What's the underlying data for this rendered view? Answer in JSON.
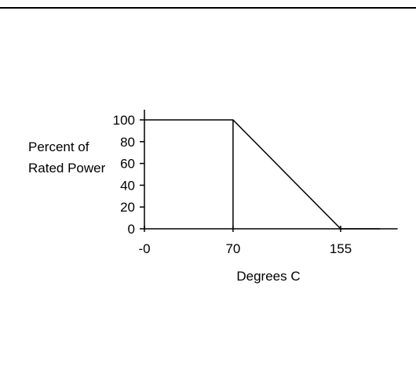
{
  "chart_data": {
    "type": "line",
    "title": "",
    "xlabel": "Degrees C",
    "ylabel_lines": [
      "Percent of",
      "Rated Power"
    ],
    "x_ticks": [
      {
        "value": 0,
        "label": "-0"
      },
      {
        "value": 70,
        "label": "70"
      },
      {
        "value": 155,
        "label": "155"
      }
    ],
    "y_ticks": [
      0,
      20,
      40,
      60,
      80,
      100
    ],
    "xlim": [
      0,
      200
    ],
    "ylim": [
      0,
      110
    ],
    "series": [
      {
        "x": [
          0,
          70,
          155,
          200
        ],
        "y": [
          100,
          100,
          0,
          0
        ]
      }
    ],
    "vertical_markers": [
      70
    ],
    "colors": {
      "line": "#000000",
      "axis": "#000000"
    },
    "grid": false
  }
}
